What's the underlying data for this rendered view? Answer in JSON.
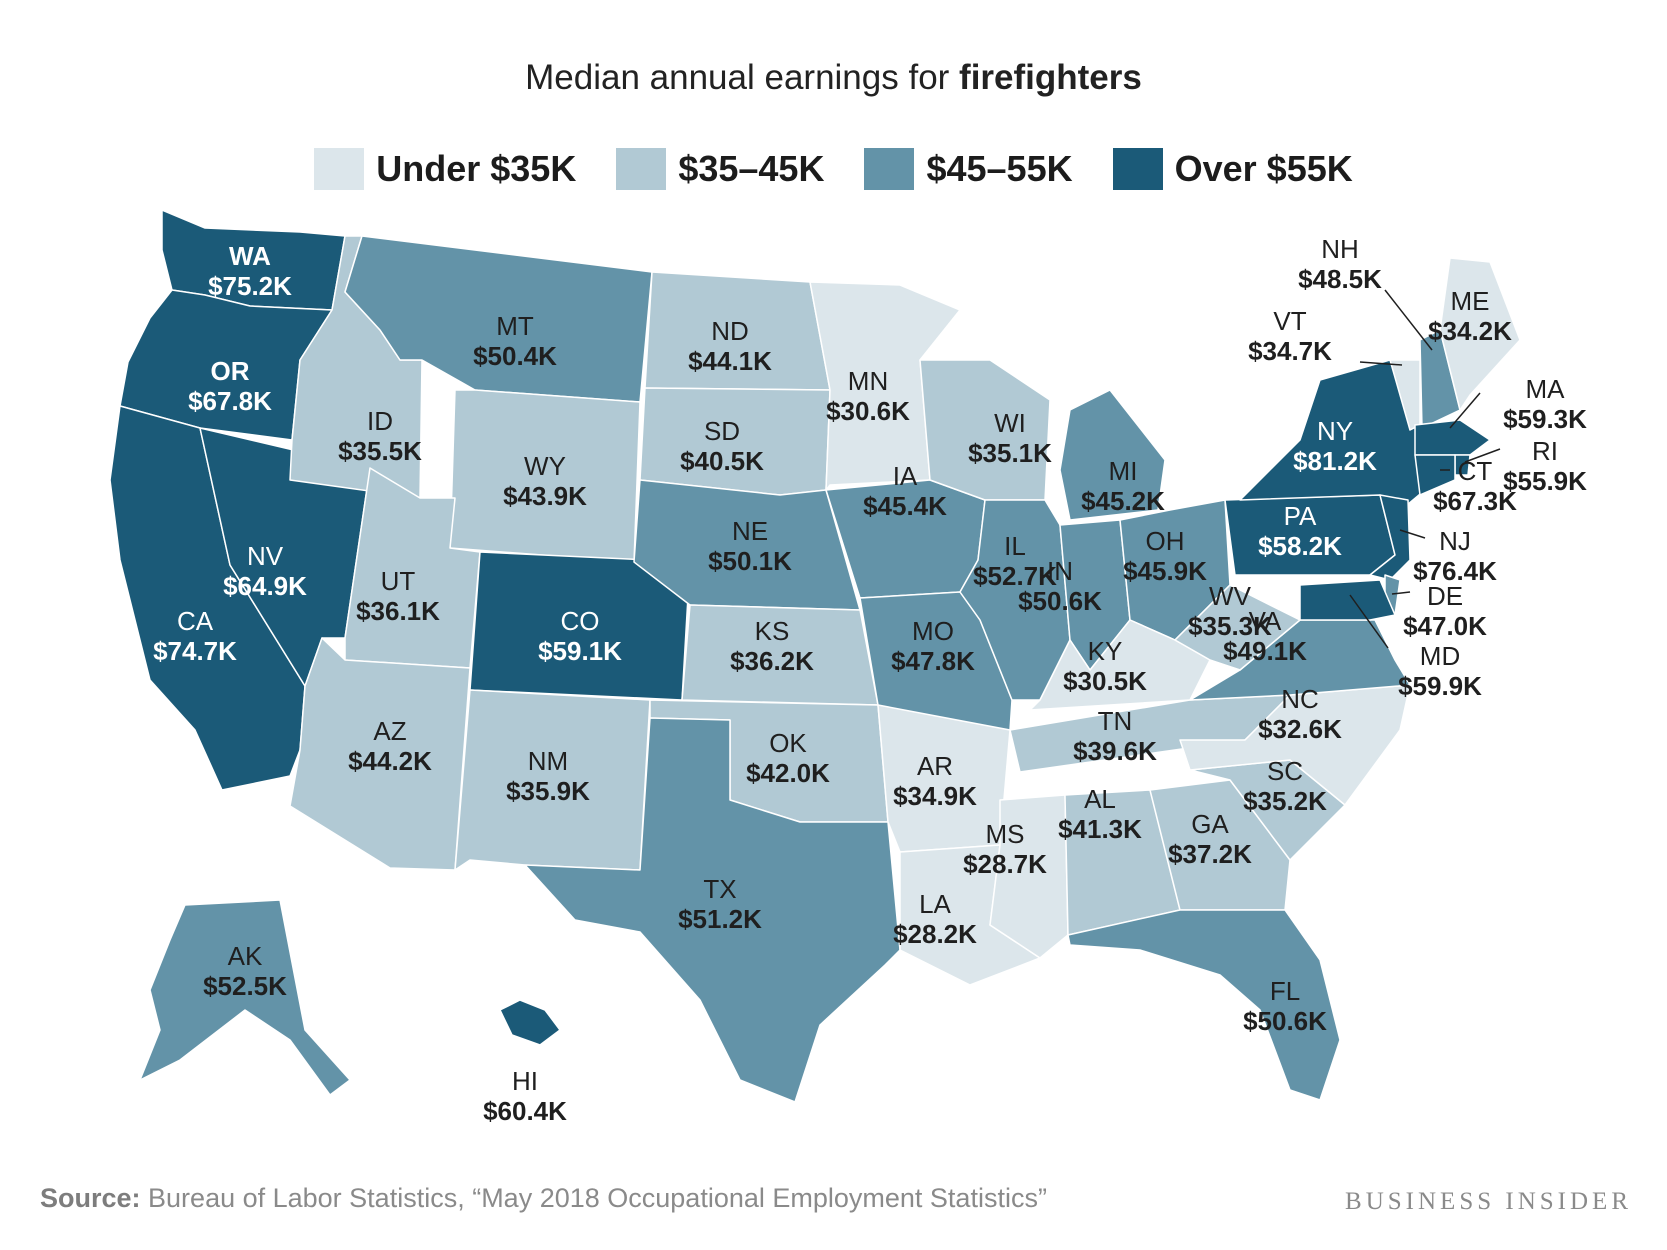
{
  "title": {
    "prefix": "Median annual earnings for ",
    "bold": "firefighters"
  },
  "legend": [
    {
      "label": "Under $35K",
      "color": "#dce6eb"
    },
    {
      "label": "$35–45K",
      "color": "#b1c9d4"
    },
    {
      "label": "$45–55K",
      "color": "#6393a8"
    },
    {
      "label": "Over $55K",
      "color": "#1b5a78"
    }
  ],
  "source": {
    "label": "Source:",
    "text": " Bureau of Labor Statistics, “May 2018 Occupational Employment Statistics”"
  },
  "brand": "BUSINESS INSIDER",
  "states": [
    {
      "abbr": "WA",
      "value": "$75.2K",
      "bin": 3
    },
    {
      "abbr": "OR",
      "value": "$67.8K",
      "bin": 3
    },
    {
      "abbr": "CA",
      "value": "$74.7K",
      "bin": 3
    },
    {
      "abbr": "NV",
      "value": "$64.9K",
      "bin": 3
    },
    {
      "abbr": "ID",
      "value": "$35.5K",
      "bin": 1
    },
    {
      "abbr": "MT",
      "value": "$50.4K",
      "bin": 2
    },
    {
      "abbr": "WY",
      "value": "$43.9K",
      "bin": 1
    },
    {
      "abbr": "UT",
      "value": "$36.1K",
      "bin": 1
    },
    {
      "abbr": "CO",
      "value": "$59.1K",
      "bin": 3
    },
    {
      "abbr": "AZ",
      "value": "$44.2K",
      "bin": 1
    },
    {
      "abbr": "NM",
      "value": "$35.9K",
      "bin": 1
    },
    {
      "abbr": "ND",
      "value": "$44.1K",
      "bin": 1
    },
    {
      "abbr": "SD",
      "value": "$40.5K",
      "bin": 1
    },
    {
      "abbr": "NE",
      "value": "$50.1K",
      "bin": 2
    },
    {
      "abbr": "KS",
      "value": "$36.2K",
      "bin": 1
    },
    {
      "abbr": "OK",
      "value": "$42.0K",
      "bin": 1
    },
    {
      "abbr": "TX",
      "value": "$51.2K",
      "bin": 2
    },
    {
      "abbr": "MN",
      "value": "$30.6K",
      "bin": 0
    },
    {
      "abbr": "IA",
      "value": "$45.4K",
      "bin": 2
    },
    {
      "abbr": "MO",
      "value": "$47.8K",
      "bin": 2
    },
    {
      "abbr": "AR",
      "value": "$34.9K",
      "bin": 0
    },
    {
      "abbr": "LA",
      "value": "$28.2K",
      "bin": 0
    },
    {
      "abbr": "WI",
      "value": "$35.1K",
      "bin": 1
    },
    {
      "abbr": "IL",
      "value": "$52.7K",
      "bin": 2
    },
    {
      "abbr": "MI",
      "value": "$45.2K",
      "bin": 2
    },
    {
      "abbr": "IN",
      "value": "$50.6K",
      "bin": 2
    },
    {
      "abbr": "OH",
      "value": "$45.9K",
      "bin": 2
    },
    {
      "abbr": "KY",
      "value": "$30.5K",
      "bin": 0
    },
    {
      "abbr": "TN",
      "value": "$39.6K",
      "bin": 1
    },
    {
      "abbr": "MS",
      "value": "$28.7K",
      "bin": 0
    },
    {
      "abbr": "AL",
      "value": "$41.3K",
      "bin": 1
    },
    {
      "abbr": "GA",
      "value": "$37.2K",
      "bin": 1
    },
    {
      "abbr": "FL",
      "value": "$50.6K",
      "bin": 2
    },
    {
      "abbr": "SC",
      "value": "$35.2K",
      "bin": 1
    },
    {
      "abbr": "NC",
      "value": "$32.6K",
      "bin": 0
    },
    {
      "abbr": "VA",
      "value": "$49.1K",
      "bin": 2
    },
    {
      "abbr": "WV",
      "value": "$35.3K",
      "bin": 1
    },
    {
      "abbr": "PA",
      "value": "$58.2K",
      "bin": 3
    },
    {
      "abbr": "NY",
      "value": "$81.2K",
      "bin": 3
    },
    {
      "abbr": "VT",
      "value": "$34.7K",
      "bin": 0
    },
    {
      "abbr": "NH",
      "value": "$48.5K",
      "bin": 2
    },
    {
      "abbr": "ME",
      "value": "$34.2K",
      "bin": 0
    },
    {
      "abbr": "MA",
      "value": "$59.3K",
      "bin": 3
    },
    {
      "abbr": "RI",
      "value": "$55.9K",
      "bin": 3
    },
    {
      "abbr": "CT",
      "value": "$67.3K",
      "bin": 3
    },
    {
      "abbr": "NJ",
      "value": "$76.4K",
      "bin": 3
    },
    {
      "abbr": "DE",
      "value": "$47.0K",
      "bin": 2
    },
    {
      "abbr": "MD",
      "value": "$59.9K",
      "bin": 3
    },
    {
      "abbr": "AK",
      "value": "$52.5K",
      "bin": 2
    },
    {
      "abbr": "HI",
      "value": "$60.4K",
      "bin": 3
    }
  ]
}
